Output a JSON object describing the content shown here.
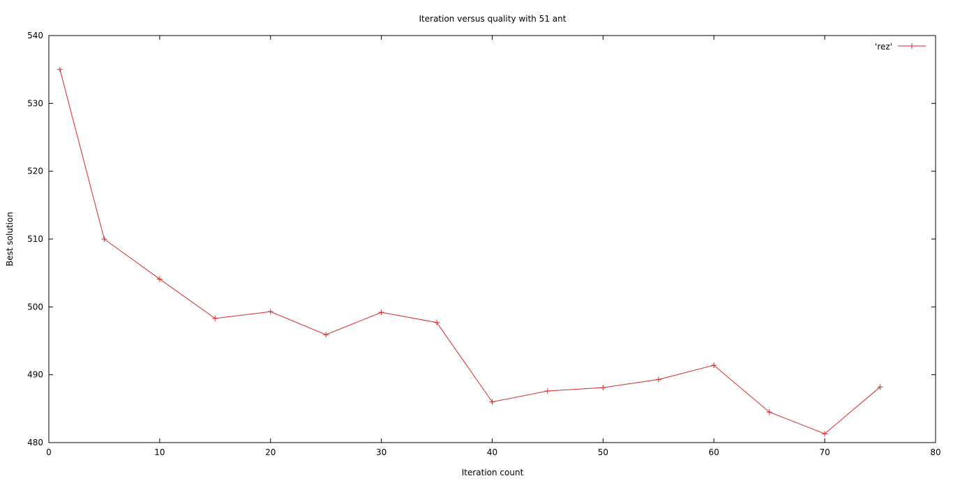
{
  "chart_data": {
    "type": "line",
    "title": "Iteration versus quality with 51 ant",
    "xlabel": "Iteration count",
    "ylabel": "Best solution",
    "xlim": [
      0,
      80
    ],
    "ylim": [
      480,
      540
    ],
    "xticks": [
      0,
      10,
      20,
      30,
      40,
      50,
      60,
      70,
      80
    ],
    "yticks": [
      480,
      490,
      500,
      510,
      520,
      530,
      540
    ],
    "grid": false,
    "legend_position": "top-right",
    "series": [
      {
        "name": "'rez'",
        "color": "#d62728",
        "marker": "plus",
        "x": [
          1,
          5,
          10,
          15,
          20,
          25,
          30,
          35,
          40,
          45,
          50,
          55,
          60,
          65,
          70,
          75
        ],
        "y": [
          535,
          510,
          504.1,
          498.3,
          499.3,
          495.9,
          499.2,
          497.7,
          486.0,
          487.6,
          488.1,
          489.3,
          491.4,
          484.5,
          481.3,
          488.2
        ]
      }
    ]
  }
}
